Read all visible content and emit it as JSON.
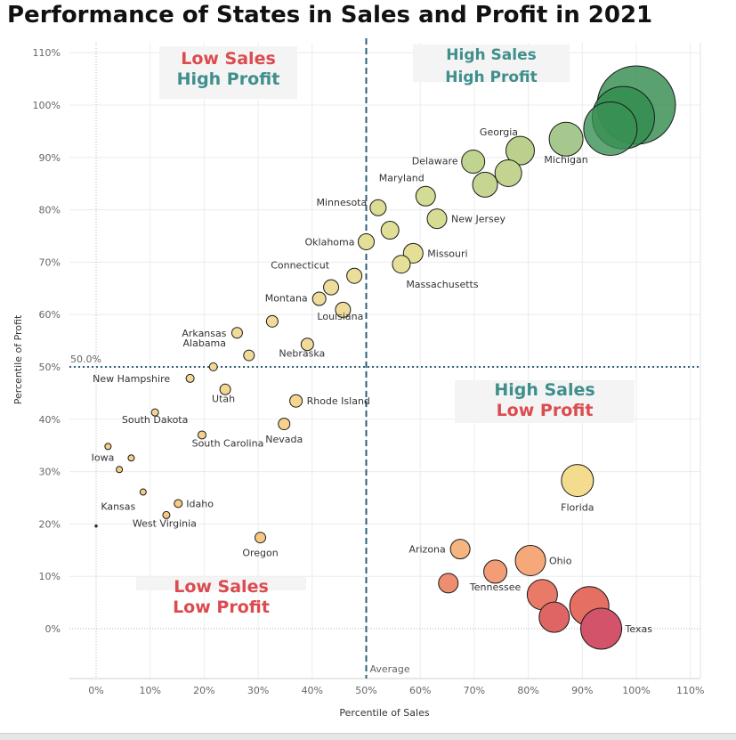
{
  "title": "Performance of States in Sales and Profit in 2021",
  "colors": {
    "low_text": "#dc4b4f",
    "high_text": "#3f8f8c",
    "reference_line": "#2e5f7a",
    "grid": "#ececec"
  },
  "quadrants": {
    "top_left": {
      "line1": "Low Sales",
      "line2": "High Profit"
    },
    "top_right": {
      "line1": "High Sales",
      "line2": "High Profit"
    },
    "bottom_right": {
      "line1": "High Sales",
      "line2": "Low Profit"
    },
    "bottom_left": {
      "line1": "Low Sales",
      "line2": "Low Profit"
    }
  },
  "chart_data": {
    "type": "scatter",
    "title": "Performance of States in Sales and Profit in 2021",
    "xlabel": "Percentile of Sales",
    "ylabel": "Percentile of Profit",
    "xlim": [
      -5,
      112
    ],
    "ylim": [
      -9,
      112
    ],
    "x_ticks": [
      "0%",
      "10%",
      "20%",
      "30%",
      "40%",
      "50%",
      "60%",
      "70%",
      "80%",
      "90%",
      "100%",
      "110%"
    ],
    "y_ticks": [
      "0%",
      "10%",
      "20%",
      "30%",
      "40%",
      "50%",
      "60%",
      "70%",
      "80%",
      "90%",
      "100%",
      "110%"
    ],
    "grid": true,
    "size_encoding": "sales",
    "color_encoding": "profit",
    "reference_lines": {
      "vertical": {
        "value": 50,
        "label": "Average"
      },
      "horizontal": {
        "value": 50,
        "label": "50.0%"
      }
    },
    "points": [
      {
        "label": "",
        "x": 100,
        "y": 100,
        "size": 44,
        "color": "#2f8a4b"
      },
      {
        "label": "",
        "x": 97.6,
        "y": 97.6,
        "size": 35,
        "color": "#318c4d"
      },
      {
        "label": "",
        "x": 95.2,
        "y": 95.5,
        "size": 30,
        "color": "#3a9055"
      },
      {
        "label": "Michigan",
        "x": 87,
        "y": 93.5,
        "size": 19,
        "color": "#a6c88e"
      },
      {
        "label": "Georgia",
        "x": 78.5,
        "y": 91.3,
        "size": 16,
        "color": "#bbd08d"
      },
      {
        "label": "Delaware",
        "x": 69.8,
        "y": 89.2,
        "size": 13,
        "color": "#c0d38f"
      },
      {
        "label": "",
        "x": 76.3,
        "y": 87,
        "size": 15,
        "color": "#c3d490"
      },
      {
        "label": "",
        "x": 72,
        "y": 84.8,
        "size": 14,
        "color": "#c6d591"
      },
      {
        "label": "Maryland",
        "x": 61,
        "y": 82.6,
        "size": 11,
        "color": "#d4db94"
      },
      {
        "label": "Minnesota",
        "x": 52.2,
        "y": 80.4,
        "size": 9,
        "color": "#dbdd95"
      },
      {
        "label": "New Jersey",
        "x": 63.1,
        "y": 78.3,
        "size": 11,
        "color": "#d6dc94"
      },
      {
        "label": "",
        "x": 54.4,
        "y": 76.1,
        "size": 10,
        "color": "#dfdf96"
      },
      {
        "label": "Oklahoma",
        "x": 50,
        "y": 73.9,
        "size": 9,
        "color": "#e4df97"
      },
      {
        "label": "Missouri",
        "x": 58.7,
        "y": 71.7,
        "size": 11,
        "color": "#e4df97"
      },
      {
        "label": "Massachusetts",
        "x": 56.5,
        "y": 69.6,
        "size": 10,
        "color": "#e6df98"
      },
      {
        "label": "Connecticut",
        "x": 47.8,
        "y": 67.4,
        "size": 8.5,
        "color": "#eade99"
      },
      {
        "label": "",
        "x": 43.5,
        "y": 65.2,
        "size": 8.5,
        "color": "#eddd9a"
      },
      {
        "label": "Montana",
        "x": 41.3,
        "y": 63,
        "size": 7.5,
        "color": "#eedd9a"
      },
      {
        "label": "Louisiana",
        "x": 45.7,
        "y": 60.9,
        "size": 8.5,
        "color": "#efdc9a"
      },
      {
        "label": "",
        "x": 32.6,
        "y": 58.7,
        "size": 6.5,
        "color": "#f0dc9a"
      },
      {
        "label": "Arkansas",
        "x": 26.1,
        "y": 56.5,
        "size": 6,
        "color": "#f1db99"
      },
      {
        "label": "Nebraska",
        "x": 39.1,
        "y": 54.3,
        "size": 7,
        "color": "#f2da98"
      },
      {
        "label": "Alabama",
        "x": 28.3,
        "y": 52.2,
        "size": 6,
        "color": "#f3d996"
      },
      {
        "label": "",
        "x": 21.7,
        "y": 50,
        "size": 4.5,
        "color": "#f3d895"
      },
      {
        "label": "New Hampshire",
        "x": 17.4,
        "y": 47.8,
        "size": 4.5,
        "color": "#f4d793"
      },
      {
        "label": "Utah",
        "x": 23.9,
        "y": 45.7,
        "size": 6,
        "color": "#f4d692"
      },
      {
        "label": "Rhode Island",
        "x": 37,
        "y": 43.5,
        "size": 7,
        "color": "#f5d591"
      },
      {
        "label": "South Dakota",
        "x": 10.9,
        "y": 41.3,
        "size": 4,
        "color": "#f5d48f"
      },
      {
        "label": "Nevada",
        "x": 34.8,
        "y": 39.1,
        "size": 6.5,
        "color": "#f6d28d"
      },
      {
        "label": "South Carolina",
        "x": 19.6,
        "y": 37,
        "size": 4.5,
        "color": "#f6d18c"
      },
      {
        "label": "",
        "x": 2.2,
        "y": 34.8,
        "size": 3.5,
        "color": "#f6d08b"
      },
      {
        "label": "Iowa",
        "x": 6.5,
        "y": 32.6,
        "size": 3.5,
        "color": "#f6cf8a"
      },
      {
        "label": "",
        "x": 4.3,
        "y": 30.4,
        "size": 3.5,
        "color": "#f6ce89"
      },
      {
        "label": "Florida",
        "x": 89.1,
        "y": 28.3,
        "size": 18,
        "color": "#f3dc8e"
      },
      {
        "label": "Kansas",
        "x": 8.7,
        "y": 26.1,
        "size": 3.5,
        "color": "#f6cd88"
      },
      {
        "label": "Idaho",
        "x": 15.2,
        "y": 23.9,
        "size": 4.5,
        "color": "#f6cb86"
      },
      {
        "label": "West Virginia",
        "x": 13,
        "y": 21.7,
        "size": 4,
        "color": "#f6ca85"
      },
      {
        "label": "",
        "x": 0,
        "y": 19.6,
        "size": 1.2,
        "color": "#555555"
      },
      {
        "label": "Oregon",
        "x": 30.4,
        "y": 17.4,
        "size": 6,
        "color": "#f6c883"
      },
      {
        "label": "Arizona",
        "x": 67.4,
        "y": 15.2,
        "size": 11,
        "color": "#f6b57e"
      },
      {
        "label": "Ohio",
        "x": 80.4,
        "y": 13,
        "size": 17,
        "color": "#f5a97a"
      },
      {
        "label": "Tennessee",
        "x": 73.9,
        "y": 10.9,
        "size": 13,
        "color": "#f29d76"
      },
      {
        "label": "",
        "x": 65.2,
        "y": 8.7,
        "size": 11,
        "color": "#ee8e70"
      },
      {
        "label": "",
        "x": 82.6,
        "y": 6.5,
        "size": 17,
        "color": "#e97a68"
      },
      {
        "label": "",
        "x": 91.3,
        "y": 4.3,
        "size": 22,
        "color": "#e66f64"
      },
      {
        "label": "",
        "x": 84.8,
        "y": 2.2,
        "size": 17,
        "color": "#de6563"
      },
      {
        "label": "Texas",
        "x": 93.5,
        "y": 0,
        "size": 23,
        "color": "#d2536a"
      }
    ]
  }
}
